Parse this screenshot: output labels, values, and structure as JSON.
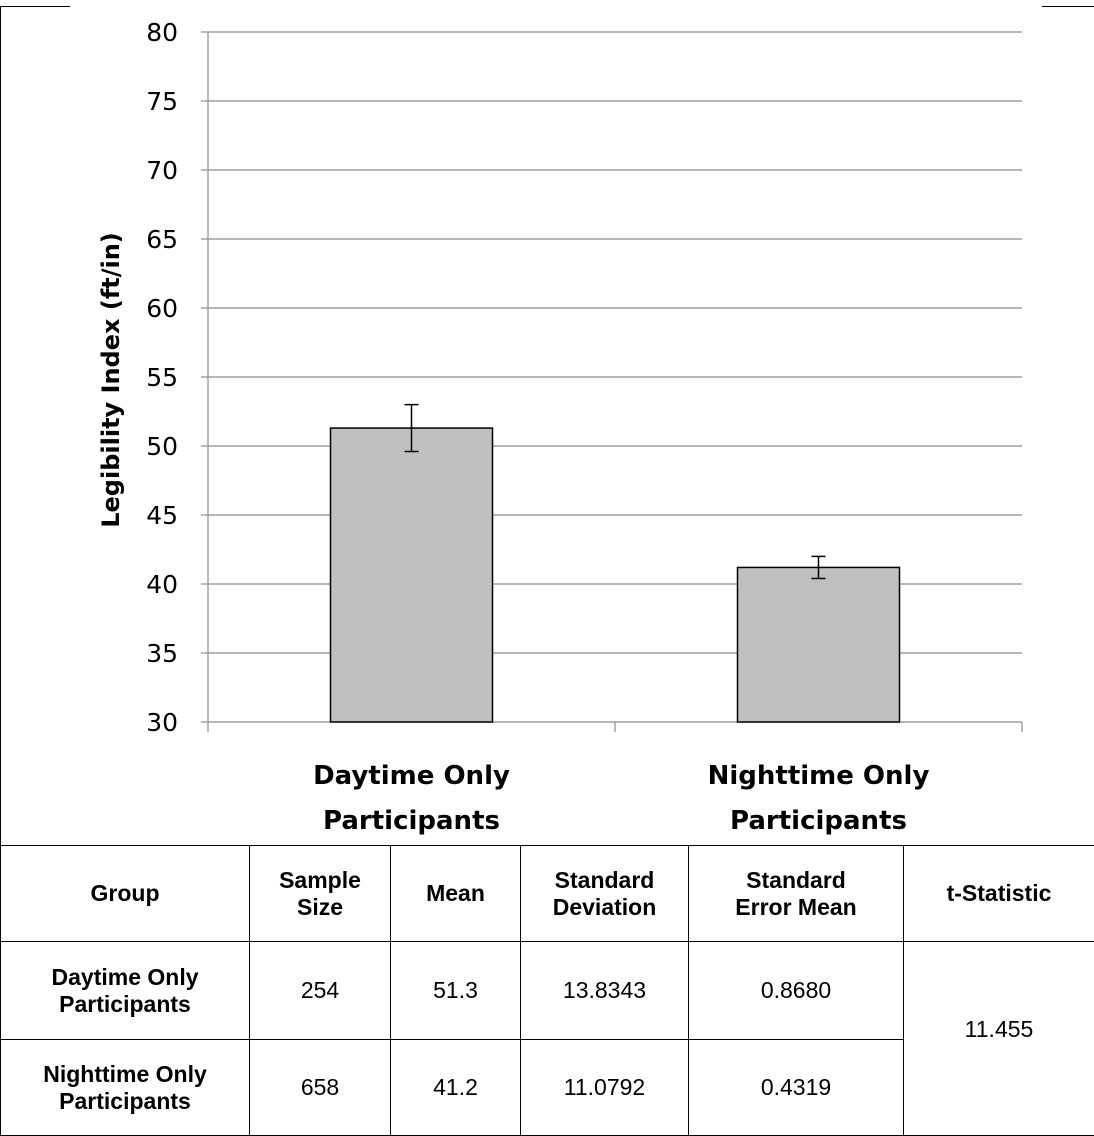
{
  "chart_data": {
    "type": "bar",
    "title": "",
    "ylabel": "Legibility Index (ft/in)",
    "xlabel": "",
    "ylim": [
      30,
      80
    ],
    "yticks": [
      30,
      35,
      40,
      45,
      50,
      55,
      60,
      65,
      70,
      75,
      80
    ],
    "grid": true,
    "categories": [
      {
        "line1": "Daytime Only",
        "line2": "Participants"
      },
      {
        "line1": "Nighttime Only",
        "line2": "Participants"
      }
    ],
    "values": [
      51.3,
      41.2
    ],
    "error_low": [
      49.6,
      40.4
    ],
    "error_high": [
      53.0,
      42.0
    ],
    "bar_color": "#c0c0c0"
  },
  "table": {
    "headers": [
      {
        "line1": "Group",
        "line2": ""
      },
      {
        "line1": "Sample",
        "line2": "Size"
      },
      {
        "line1": "Mean",
        "line2": ""
      },
      {
        "line1": "Standard",
        "line2": "Deviation"
      },
      {
        "line1": "Standard",
        "line2": "Error Mean"
      },
      {
        "line1": "t-Statistic",
        "line2": ""
      }
    ],
    "rows": [
      {
        "group1": "Daytime Only",
        "group2": "Participants",
        "n": "254",
        "mean": "51.3",
        "sd": "13.8343",
        "sem": "0.8680"
      },
      {
        "group1": "Nighttime Only",
        "group2": "Participants",
        "n": "658",
        "mean": "41.2",
        "sd": "11.0792",
        "sem": "0.4319"
      }
    ],
    "t_statistic": "11.455"
  }
}
